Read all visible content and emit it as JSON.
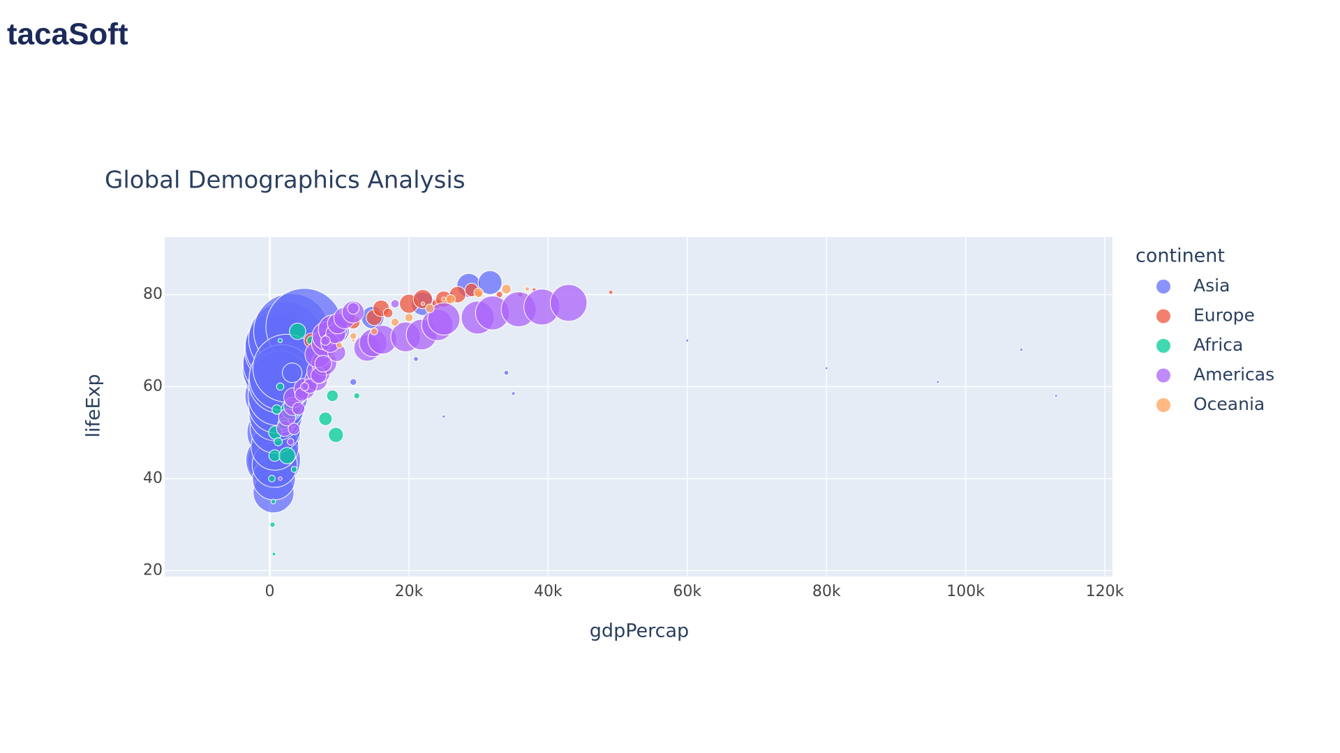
{
  "logo": "tacaSoft",
  "chart_data": {
    "type": "scatter",
    "title": "Global Demographics Analysis",
    "x_label": "gdpPercap",
    "y_label": "lifeExp",
    "legend_title": "continent",
    "legend_position": "right",
    "grid": true,
    "plot_background": "#e5ecf6",
    "xlim": [
      -15100,
      121100
    ],
    "ylim": [
      18.7,
      92.5
    ],
    "xticks": [
      0,
      {
        "value": 20000,
        "label": "20k"
      },
      {
        "value": 40000,
        "label": "40k"
      },
      {
        "value": 60000,
        "label": "60k"
      },
      {
        "value": 80000,
        "label": "80k"
      },
      {
        "value": 100000,
        "label": "100k"
      },
      {
        "value": 120000,
        "label": "120k"
      }
    ],
    "yticks": [
      20,
      40,
      60,
      80
    ],
    "series": [
      {
        "name": "Asia",
        "color": "#636efa",
        "x": [
          400,
          575,
          487,
          612,
          676,
          741,
          962,
          1379,
          1656,
          2289,
          3119,
          4959,
          547,
          590,
          700,
          724,
          813,
          856,
          977,
          1164,
          1458,
          1747,
          2452,
          3217,
          9847,
          14779,
          22000,
          28605,
          31656,
          26000,
          12000,
          34000,
          35000,
          25000,
          21000,
          60000,
          80000,
          96000,
          108000,
          113000
        ],
        "y": [
          44,
          50,
          44,
          58,
          63,
          64,
          65,
          68,
          68.7,
          70.4,
          72,
          73,
          37,
          40,
          43,
          47,
          51,
          54,
          56,
          58,
          61,
          62,
          64,
          63,
          72,
          75,
          78,
          82,
          82.6,
          80,
          61,
          63,
          58.5,
          53.5,
          66,
          70,
          64,
          61,
          68,
          58
        ],
        "size": [
          556,
          637,
          665,
          754,
          862,
          943,
          1000,
          1084,
          1165,
          1230,
          1280,
          1319,
          372,
          409,
          454,
          506,
          567,
          634,
          708,
          788,
          872,
          959,
          1034,
          86,
          104,
          113,
          122,
          127,
          127,
          7,
          10,
          5,
          3,
          2,
          5,
          2,
          1,
          1.5,
          2,
          1
        ]
      },
      {
        "name": "Europe",
        "color": "#EF553B",
        "x": [
          6000,
          10000,
          15000,
          16000,
          20000,
          22000,
          27000,
          29000,
          33000,
          36000,
          38000,
          49000,
          8000,
          12000,
          17000,
          24000,
          25000,
          30000
        ],
        "y": [
          70,
          72,
          75,
          77,
          78,
          79,
          80,
          81,
          80,
          80,
          81,
          80.5,
          68,
          74,
          76,
          78,
          79,
          80.2
        ],
        "size": [
          50,
          10,
          56,
          60,
          80,
          82,
          60,
          40,
          9,
          5,
          4,
          4,
          30,
          40,
          20,
          20,
          58,
          10
        ]
      },
      {
        "name": "Africa",
        "color": "#00cc96",
        "x": [
          300,
          500,
          700,
          800,
          1000,
          1200,
          1500,
          2000,
          2500,
          3000,
          5000,
          7000,
          8000,
          9000,
          9500,
          12500,
          600,
          400,
          1500,
          4000,
          3500,
          6000
        ],
        "y": [
          40,
          35,
          45,
          50,
          55,
          48,
          60,
          52,
          45,
          55,
          60,
          67,
          53,
          58,
          49.5,
          58,
          23.6,
          30,
          70,
          72,
          42,
          70
        ],
        "size": [
          10,
          5,
          30,
          40,
          20,
          15,
          12,
          30,
          60,
          80,
          10,
          5,
          40,
          30,
          50,
          8,
          3,
          6,
          4,
          60,
          8,
          20
        ]
      },
      {
        "name": "Americas",
        "color": "#ab63fa",
        "x": [
          13990,
          14847,
          16173,
          19530,
          21806,
          24073,
          25009,
          29884,
          32004,
          35767,
          39097,
          42951,
          2108,
          2487,
          3336,
          3430,
          4986,
          6660,
          7031,
          7807,
          6950,
          7958,
          8131,
          9066,
          3478,
          4131,
          4581,
          5755,
          7011,
          7674,
          9611,
          8688,
          9472,
          9767,
          10742,
          11977,
          1500,
          3000,
          5000,
          8000,
          12000,
          18000
        ],
        "y": [
          68.4,
          69.5,
          70.2,
          70.8,
          71.3,
          73.4,
          74.7,
          75,
          76,
          76.8,
          77.3,
          78.2,
          50.9,
          53.3,
          55.7,
          57.6,
          59.5,
          61.5,
          63.3,
          65.2,
          67,
          69.4,
          71,
          72.4,
          50.8,
          55.2,
          58.3,
          60.1,
          62.4,
          65,
          67.4,
          69.5,
          71.5,
          73.7,
          74.9,
          76.2,
          40,
          48,
          60,
          70,
          77,
          78
        ],
        "size": [
          157,
          171,
          186,
          198,
          209,
          220,
          232,
          242,
          256,
          272,
          287,
          301,
          57,
          65,
          76,
          88,
          100,
          114,
          128,
          143,
          155,
          168,
          180,
          190,
          30,
          35,
          41,
          47,
          55,
          63,
          71,
          80,
          88,
          95,
          102,
          108,
          3,
          10,
          15,
          20,
          30,
          15
        ]
      },
      {
        "name": "Oceania",
        "color": "#FFA15A",
        "x": [
          10000,
          12000,
          15000,
          18000,
          20000,
          23000,
          26000,
          30000,
          34000,
          37000,
          12000,
          22000,
          25000
        ],
        "y": [
          69,
          71,
          72,
          74,
          75,
          77,
          79,
          80.4,
          81.2,
          81.2,
          70,
          78,
          79
        ],
        "size": [
          8,
          10,
          11,
          14,
          15,
          17,
          19,
          20,
          20,
          4,
          2,
          3,
          4
        ]
      }
    ]
  }
}
